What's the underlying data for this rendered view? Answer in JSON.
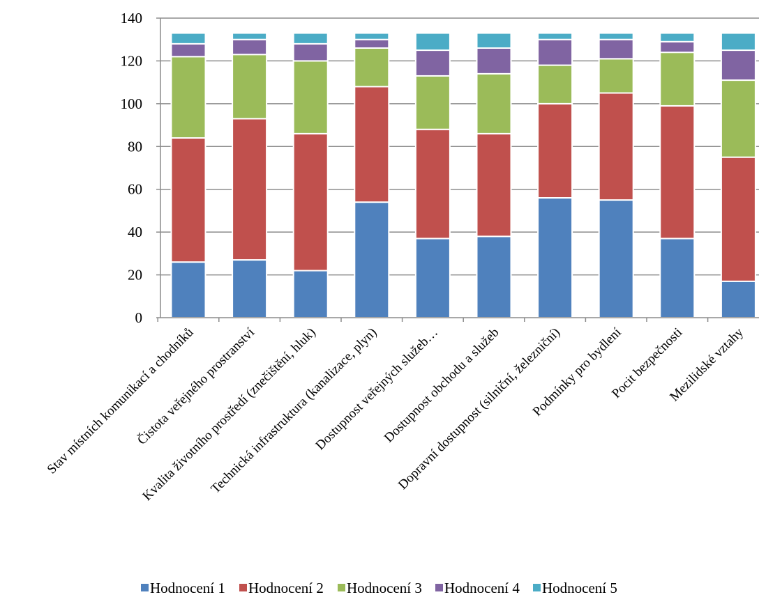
{
  "chart_data": {
    "type": "bar",
    "stacked": true,
    "categories": [
      "Stav místních komunikací a chodníků",
      "Čistota veřejného prostranství",
      "Kvalita životního prostředí (znečištění, hluk)",
      "Technická infrastruktura (kanalizace, plyn)",
      "Dostupnost veřejných služeb…",
      "Dostupnost obchodu a služeb",
      "Dopravní dostupnost (silniční, železniční)",
      "Podmínky pro bydlení",
      "Pocit bezpečnosti",
      "Mezilidské vztahy"
    ],
    "series": [
      {
        "name": "Hodnocení 1",
        "color": "#4f81bd",
        "values": [
          26,
          27,
          22,
          54,
          37,
          38,
          56,
          55,
          37,
          17
        ]
      },
      {
        "name": "Hodnocení 2",
        "color": "#c0504d",
        "values": [
          58,
          66,
          64,
          54,
          51,
          48,
          44,
          50,
          62,
          58
        ]
      },
      {
        "name": "Hodnocení 3",
        "color": "#9bbb59",
        "values": [
          38,
          30,
          34,
          18,
          25,
          28,
          18,
          16,
          25,
          36
        ]
      },
      {
        "name": "Hodnocení 4",
        "color": "#8064a2",
        "values": [
          6,
          7,
          8,
          4,
          12,
          12,
          12,
          9,
          5,
          14
        ]
      },
      {
        "name": "Hodnocení 5",
        "color": "#4bacc6",
        "values": [
          5,
          3,
          5,
          3,
          8,
          7,
          3,
          3,
          4,
          8
        ]
      }
    ],
    "title": "",
    "xlabel": "",
    "ylabel": "",
    "ylim": [
      0,
      140
    ],
    "yticks": [
      0,
      20,
      40,
      60,
      80,
      100,
      120,
      140
    ],
    "grid": true,
    "legend": "bottom"
  }
}
